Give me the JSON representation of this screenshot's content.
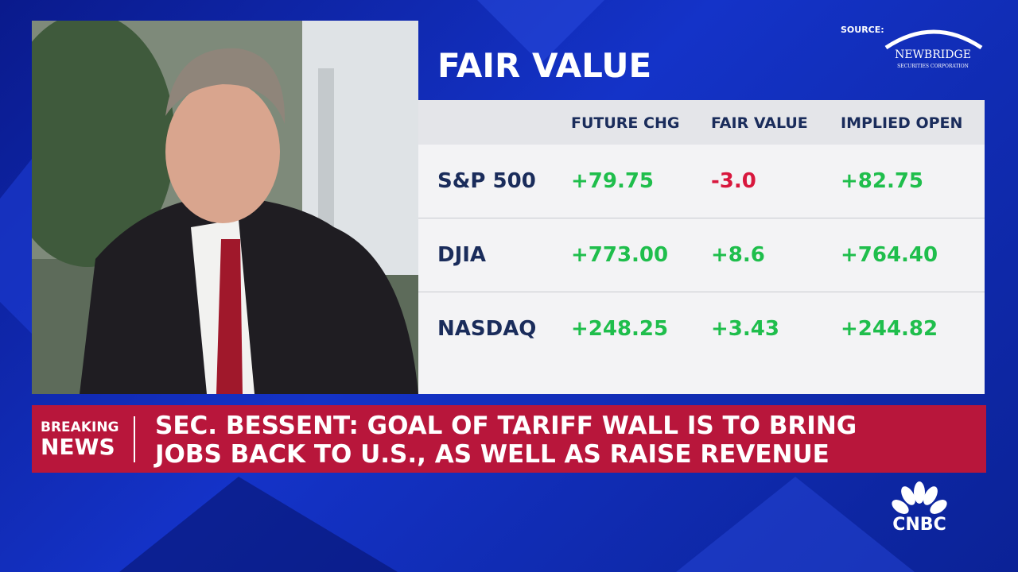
{
  "source": {
    "label": "SOURCE:",
    "name": "NEWBRIDGE",
    "subtitle": "SECURITIES CORPORATION"
  },
  "panel": {
    "title": "FAIR VALUE",
    "table": {
      "columns": [
        "FUTURE CHG",
        "FAIR VALUE",
        "IMPLIED OPEN"
      ],
      "rows": [
        [
          "S&P 500",
          "+79.75",
          "-3.0",
          "+82.75"
        ],
        [
          "DJIA",
          "+773.00",
          "+8.6",
          "+764.40"
        ],
        [
          "NASDAQ",
          "+248.25",
          "+3.43",
          "+244.82"
        ]
      ]
    }
  },
  "ticker": {
    "label": [
      "BREAKING",
      "NEWS"
    ],
    "headline": [
      "SEC. BESSENT: GOAL OF TARIFF WALL IS TO BRING",
      "JOBS BACK TO U.S., AS WELL AS RAISE REVENUE"
    ]
  },
  "network": "CNBC"
}
